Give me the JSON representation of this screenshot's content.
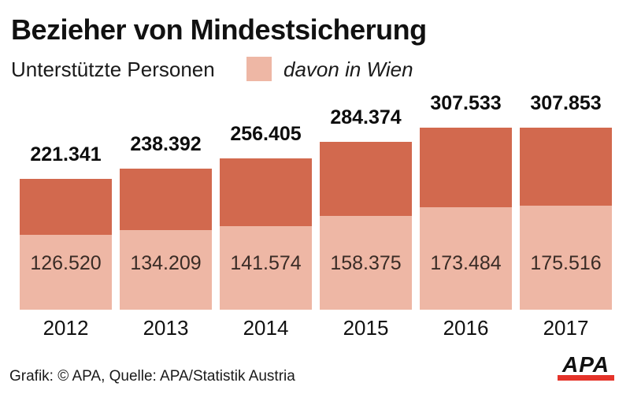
{
  "header": {
    "title": "Bezieher von Mindestsicherung",
    "subtitle": "Unterstützte Personen",
    "legend_label": "davon in Wien"
  },
  "chart_data": {
    "type": "bar",
    "stacked": true,
    "title": "Bezieher von Mindestsicherung",
    "subtitle": "Unterstützte Personen",
    "categories": [
      "2012",
      "2013",
      "2014",
      "2015",
      "2016",
      "2017"
    ],
    "series": [
      {
        "name": "Unterstützte Personen",
        "values": [
          221341,
          238392,
          256405,
          284374,
          307533,
          307853
        ],
        "labels": [
          "221.341",
          "238.392",
          "256.405",
          "284.374",
          "307.533",
          "307.853"
        ],
        "color": "#d2694e"
      },
      {
        "name": "davon in Wien",
        "values": [
          126520,
          134209,
          141574,
          158375,
          173484,
          175516
        ],
        "labels": [
          "126.520",
          "134.209",
          "141.574",
          "158.375",
          "173.484",
          "175.516"
        ],
        "color": "#eeb7a5"
      }
    ],
    "xlabel": "",
    "ylabel": "",
    "grid": false,
    "legend_position": "top",
    "value_labels_shown": true
  },
  "footer": {
    "credit": "Grafik: © APA, Quelle: APA/Statistik Austria",
    "logo_text": "APA"
  },
  "colors": {
    "total_bar": "#d2694e",
    "wien_bar": "#eeb7a5",
    "logo_red": "#e5332a",
    "background": "#ffffff"
  }
}
